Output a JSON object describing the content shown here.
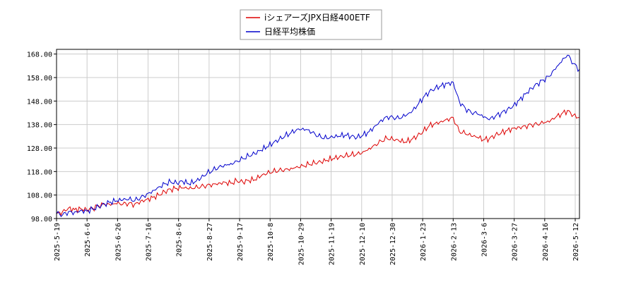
{
  "chart_data": {
    "type": "line",
    "title": "",
    "xlabel": "",
    "ylabel": "",
    "ylim": [
      98.0,
      170.0
    ],
    "yticks": [
      98.0,
      108.0,
      118.0,
      128.0,
      138.0,
      148.0,
      158.0,
      168.0
    ],
    "ytick_labels": [
      "98.00",
      "108.00",
      "118.00",
      "128.00",
      "138.00",
      "148.00",
      "158.00",
      "168.00"
    ],
    "xticks": [
      "2025-5-19",
      "2025-6-6",
      "2025-6-26",
      "2025-7-16",
      "2025-8-6",
      "2025-8-27",
      "2025-9-17",
      "2025-10-8",
      "2025-10-29",
      "2025-11-19",
      "2025-12-10",
      "2025-12-30",
      "2026-1-23",
      "2026-2-13",
      "2026-3-6",
      "2026-3-27",
      "2026-4-16",
      "2026-5-12"
    ],
    "grid": true,
    "legend_position": "top-center",
    "colors": {
      "etf": "#dd0000",
      "nikkei": "#0000cc",
      "grid": "#cccccc",
      "axis": "#000000"
    },
    "series": [
      {
        "name": "iシェアーズJPX日経400ETF",
        "key": "etf",
        "points": [
          [
            0,
            100.0
          ],
          [
            4,
            101.0
          ],
          [
            8,
            102.5
          ],
          [
            12,
            101.8
          ],
          [
            16,
            102.2
          ],
          [
            20,
            101.9
          ],
          [
            24,
            102.5
          ],
          [
            28,
            103.5
          ],
          [
            32,
            104.0
          ],
          [
            36,
            103.6
          ],
          [
            40,
            104.2
          ],
          [
            44,
            104.0
          ],
          [
            48,
            104.5
          ],
          [
            52,
            104.2
          ],
          [
            56,
            105.5
          ],
          [
            60,
            106.2
          ],
          [
            64,
            107.0
          ],
          [
            68,
            108.0
          ],
          [
            72,
            109.5
          ],
          [
            76,
            110.5
          ],
          [
            80,
            110.8
          ],
          [
            84,
            111.0
          ],
          [
            88,
            110.5
          ],
          [
            92,
            110.8
          ],
          [
            96,
            111.5
          ],
          [
            100,
            112.2
          ],
          [
            104,
            112.8
          ],
          [
            108,
            113.2
          ],
          [
            112,
            113.5
          ],
          [
            116,
            113.0
          ],
          [
            120,
            114.0
          ],
          [
            124,
            113.5
          ],
          [
            128,
            114.2
          ],
          [
            132,
            114.5
          ],
          [
            136,
            116.0
          ],
          [
            140,
            117.0
          ],
          [
            144,
            117.8
          ],
          [
            148,
            118.5
          ],
          [
            152,
            119.0
          ],
          [
            156,
            119.5
          ],
          [
            160,
            120.2
          ],
          [
            164,
            120.5
          ],
          [
            168,
            121.0
          ],
          [
            172,
            121.5
          ],
          [
            176,
            122.0
          ],
          [
            180,
            122.8
          ],
          [
            184,
            123.5
          ],
          [
            188,
            124.0
          ],
          [
            192,
            124.5
          ],
          [
            196,
            125.0
          ],
          [
            200,
            125.5
          ],
          [
            204,
            126.5
          ],
          [
            208,
            128.0
          ],
          [
            212,
            129.5
          ],
          [
            216,
            131.0
          ],
          [
            220,
            132.0
          ],
          [
            224,
            131.5
          ],
          [
            228,
            131.0
          ],
          [
            232,
            130.5
          ],
          [
            236,
            131.5
          ],
          [
            240,
            133.0
          ],
          [
            244,
            135.0
          ],
          [
            248,
            137.5
          ],
          [
            252,
            138.5
          ],
          [
            256,
            139.5
          ],
          [
            260,
            140.5
          ],
          [
            264,
            141.0
          ],
          [
            268,
            135.0
          ],
          [
            272,
            134.0
          ],
          [
            276,
            133.0
          ],
          [
            280,
            132.5
          ],
          [
            284,
            131.5
          ],
          [
            288,
            132.0
          ],
          [
            292,
            133.5
          ],
          [
            296,
            134.5
          ],
          [
            300,
            135.5
          ],
          [
            304,
            136.5
          ],
          [
            308,
            137.0
          ],
          [
            312,
            137.5
          ],
          [
            316,
            138.0
          ],
          [
            320,
            138.0
          ],
          [
            324,
            138.5
          ],
          [
            328,
            139.0
          ],
          [
            332,
            141.0
          ],
          [
            336,
            142.5
          ],
          [
            340,
            144.0
          ],
          [
            344,
            142.0
          ],
          [
            348,
            141.0
          ]
        ]
      },
      {
        "name": "日経平均株価",
        "key": "nikkei",
        "points": [
          [
            0,
            100.0
          ],
          [
            4,
            99.5
          ],
          [
            8,
            101.0
          ],
          [
            12,
            100.8
          ],
          [
            16,
            101.5
          ],
          [
            20,
            101.2
          ],
          [
            24,
            102.0
          ],
          [
            28,
            103.0
          ],
          [
            32,
            104.2
          ],
          [
            36,
            105.0
          ],
          [
            40,
            105.5
          ],
          [
            44,
            105.8
          ],
          [
            48,
            106.0
          ],
          [
            52,
            105.5
          ],
          [
            56,
            107.0
          ],
          [
            60,
            108.5
          ],
          [
            64,
            110.0
          ],
          [
            68,
            111.5
          ],
          [
            72,
            112.8
          ],
          [
            76,
            113.5
          ],
          [
            80,
            113.0
          ],
          [
            84,
            113.8
          ],
          [
            88,
            112.8
          ],
          [
            92,
            113.5
          ],
          [
            96,
            115.0
          ],
          [
            100,
            117.0
          ],
          [
            104,
            118.5
          ],
          [
            108,
            120.0
          ],
          [
            112,
            121.0
          ],
          [
            116,
            121.5
          ],
          [
            120,
            122.5
          ],
          [
            124,
            123.5
          ],
          [
            128,
            124.5
          ],
          [
            132,
            125.5
          ],
          [
            136,
            127.0
          ],
          [
            140,
            128.5
          ],
          [
            144,
            130.0
          ],
          [
            148,
            131.5
          ],
          [
            152,
            133.0
          ],
          [
            156,
            134.5
          ],
          [
            160,
            136.0
          ],
          [
            164,
            136.5
          ],
          [
            168,
            135.8
          ],
          [
            172,
            134.0
          ],
          [
            176,
            132.5
          ],
          [
            180,
            132.0
          ],
          [
            184,
            132.5
          ],
          [
            188,
            133.0
          ],
          [
            192,
            133.5
          ],
          [
            196,
            133.0
          ],
          [
            200,
            132.5
          ],
          [
            204,
            133.5
          ],
          [
            208,
            135.0
          ],
          [
            212,
            137.5
          ],
          [
            216,
            140.0
          ],
          [
            220,
            141.5
          ],
          [
            224,
            141.0
          ],
          [
            228,
            140.5
          ],
          [
            232,
            141.5
          ],
          [
            236,
            143.0
          ],
          [
            240,
            146.0
          ],
          [
            244,
            149.5
          ],
          [
            248,
            152.0
          ],
          [
            252,
            153.5
          ],
          [
            256,
            154.5
          ],
          [
            260,
            155.5
          ],
          [
            264,
            156.0
          ],
          [
            268,
            148.0
          ],
          [
            272,
            145.0
          ],
          [
            276,
            143.0
          ],
          [
            280,
            142.5
          ],
          [
            284,
            141.0
          ],
          [
            288,
            140.0
          ],
          [
            292,
            141.5
          ],
          [
            296,
            143.0
          ],
          [
            300,
            144.5
          ],
          [
            304,
            146.0
          ],
          [
            308,
            148.5
          ],
          [
            312,
            151.0
          ],
          [
            316,
            153.5
          ],
          [
            320,
            155.5
          ],
          [
            324,
            157.0
          ],
          [
            328,
            158.5
          ],
          [
            332,
            161.5
          ],
          [
            336,
            164.5
          ],
          [
            340,
            167.5
          ],
          [
            344,
            164.0
          ],
          [
            348,
            161.5
          ]
        ]
      }
    ]
  }
}
